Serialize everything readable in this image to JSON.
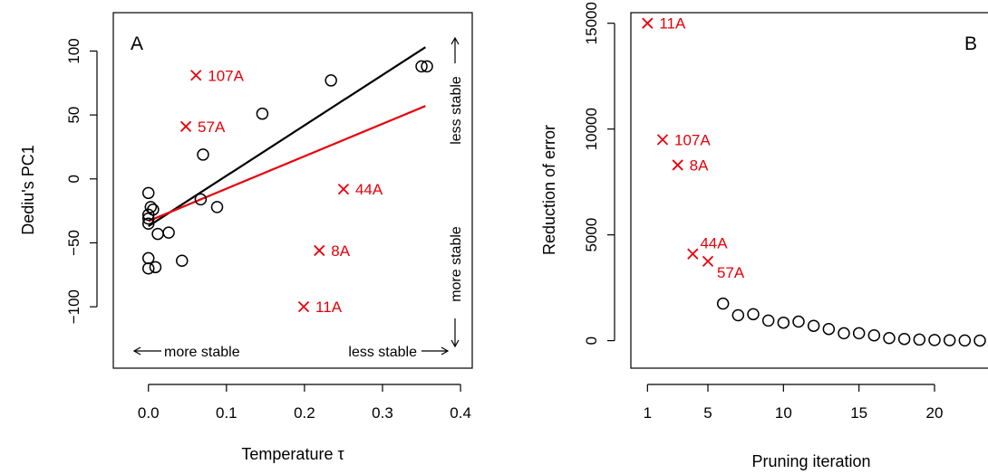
{
  "chart_data": [
    {
      "type": "scatter",
      "panel_label": "A",
      "xlabel": "Temperature τ",
      "ylabel": "Dediu's PC1",
      "xlim": [
        -0.045,
        0.415
      ],
      "ylim": [
        -148,
        130
      ],
      "xticks": [
        0.0,
        0.1,
        0.2,
        0.3,
        0.4
      ],
      "xtick_labels": [
        "0.0",
        "0.1",
        "0.2",
        "0.3",
        "0.4"
      ],
      "yticks": [
        -100,
        -50,
        0,
        50,
        100
      ],
      "ytick_labels": [
        "−100",
        "−50",
        "0",
        "50",
        "100"
      ],
      "grid": false,
      "colors": {
        "black": "#000000",
        "red": "#e8000b"
      },
      "circles": [
        {
          "x": 0.0,
          "y": -11
        },
        {
          "x": 0.0,
          "y": -28
        },
        {
          "x": 0.0,
          "y": -31
        },
        {
          "x": 0.0,
          "y": -35
        },
        {
          "x": 0.0,
          "y": -62
        },
        {
          "x": 0.0,
          "y": -70
        },
        {
          "x": 0.003,
          "y": -22
        },
        {
          "x": 0.006,
          "y": -24
        },
        {
          "x": 0.009,
          "y": -69
        },
        {
          "x": 0.012,
          "y": -43
        },
        {
          "x": 0.026,
          "y": -42
        },
        {
          "x": 0.043,
          "y": -64
        },
        {
          "x": 0.067,
          "y": -16
        },
        {
          "x": 0.07,
          "y": 19
        },
        {
          "x": 0.088,
          "y": -22
        },
        {
          "x": 0.146,
          "y": 51
        },
        {
          "x": 0.234,
          "y": 77
        },
        {
          "x": 0.35,
          "y": 88
        },
        {
          "x": 0.357,
          "y": 88
        }
      ],
      "crosses": [
        {
          "x": 0.061,
          "y": 81,
          "label": "107A"
        },
        {
          "x": 0.048,
          "y": 41,
          "label": "57A"
        },
        {
          "x": 0.25,
          "y": -8,
          "label": "44A"
        },
        {
          "x": 0.219,
          "y": -56,
          "label": "8A"
        },
        {
          "x": 0.199,
          "y": -100,
          "label": "11A"
        }
      ],
      "fit_lines": [
        {
          "name": "",
          "color": "#000000",
          "x": [
            0.0,
            0.355
          ],
          "y": [
            -37,
            103
          ]
        },
        {
          "name": "",
          "color": "#e8000b",
          "x": [
            0.0,
            0.355
          ],
          "y": [
            -33,
            57
          ]
        }
      ],
      "annotations": {
        "bottom_left": "more stable",
        "bottom_right": "less stable",
        "right_top": "less stable",
        "right_bottom": "more stable"
      }
    },
    {
      "type": "scatter",
      "panel_label": "B",
      "xlabel": "Pruning iteration",
      "ylabel": "Reduction of error",
      "xlim": [
        -0.1,
        24.5
      ],
      "ylim": [
        -1300,
        15500
      ],
      "xticks": [
        1,
        5,
        10,
        15,
        20
      ],
      "xtick_labels": [
        "1",
        "5",
        "10",
        "15",
        "20"
      ],
      "yticks": [
        0,
        5000,
        10000,
        15000
      ],
      "ytick_labels": [
        "0",
        "5000",
        "10000",
        "15000"
      ],
      "grid": false,
      "crosses": [
        {
          "x": 1,
          "y": 15000,
          "label": "11A"
        },
        {
          "x": 2,
          "y": 9500,
          "label": "107A"
        },
        {
          "x": 3,
          "y": 8300,
          "label": "8A"
        },
        {
          "x": 4,
          "y": 4100,
          "label": "44A"
        },
        {
          "x": 5,
          "y": 3750,
          "label": "57A"
        }
      ],
      "circles": [
        {
          "x": 6,
          "y": 1750
        },
        {
          "x": 7,
          "y": 1200
        },
        {
          "x": 8,
          "y": 1250
        },
        {
          "x": 9,
          "y": 950
        },
        {
          "x": 10,
          "y": 850
        },
        {
          "x": 11,
          "y": 900
        },
        {
          "x": 12,
          "y": 700
        },
        {
          "x": 13,
          "y": 550
        },
        {
          "x": 14,
          "y": 350
        },
        {
          "x": 15,
          "y": 350
        },
        {
          "x": 16,
          "y": 250
        },
        {
          "x": 17,
          "y": 120
        },
        {
          "x": 18,
          "y": 80
        },
        {
          "x": 19,
          "y": 50
        },
        {
          "x": 20,
          "y": 30
        },
        {
          "x": 21,
          "y": 20
        },
        {
          "x": 22,
          "y": 10
        },
        {
          "x": 23,
          "y": 5
        }
      ]
    }
  ]
}
